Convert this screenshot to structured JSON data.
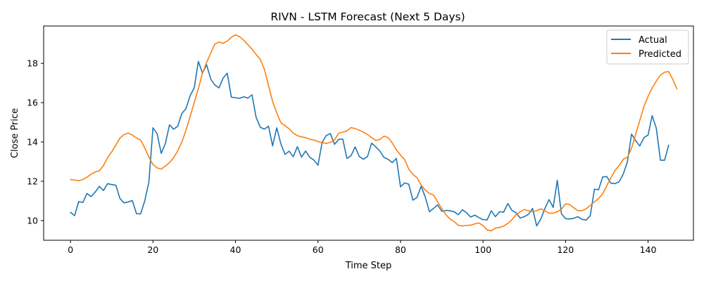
{
  "chart_data": {
    "type": "line",
    "title": "RIVN - LSTM Forecast (Next 5 Days)",
    "xlabel": "Time Step",
    "ylabel": "Close Price",
    "xlim": [
      -6.5,
      151
    ],
    "ylim": [
      9.0,
      19.9
    ],
    "xticks": [
      0,
      20,
      40,
      60,
      80,
      100,
      120,
      140
    ],
    "yticks": [
      10,
      12,
      14,
      16,
      18
    ],
    "legend_position": "top-right",
    "series": [
      {
        "name": "Actual",
        "color": "#1f77b4",
        "values": [
          10.42,
          10.25,
          10.97,
          10.92,
          11.38,
          11.22,
          11.45,
          11.74,
          11.53,
          11.88,
          11.83,
          11.8,
          11.12,
          10.9,
          10.95,
          11.02,
          10.35,
          10.34,
          11.0,
          11.95,
          14.72,
          14.42,
          13.42,
          13.92,
          14.87,
          14.65,
          14.8,
          15.45,
          15.7,
          16.35,
          16.75,
          18.1,
          17.5,
          17.93,
          17.2,
          16.9,
          16.75,
          17.25,
          17.5,
          16.28,
          16.25,
          16.22,
          16.3,
          16.23,
          16.4,
          15.25,
          14.75,
          14.65,
          14.8,
          13.8,
          14.72,
          13.9,
          13.37,
          13.53,
          13.25,
          13.76,
          13.23,
          13.54,
          13.22,
          13.08,
          12.82,
          13.98,
          14.33,
          14.43,
          13.88,
          14.13,
          14.15,
          13.16,
          13.3,
          13.75,
          13.26,
          13.12,
          13.26,
          13.94,
          13.75,
          13.53,
          13.21,
          13.12,
          12.95,
          13.16,
          11.72,
          11.92,
          11.85,
          11.04,
          11.18,
          11.75,
          11.2,
          10.45,
          10.62,
          10.8,
          10.47,
          10.52,
          10.5,
          10.45,
          10.3,
          10.55,
          10.4,
          10.18,
          10.28,
          10.15,
          10.05,
          10.04,
          10.5,
          10.2,
          10.45,
          10.43,
          10.87,
          10.52,
          10.4,
          10.13,
          10.2,
          10.32,
          10.62,
          9.73,
          10.08,
          10.62,
          11.07,
          10.67,
          12.05,
          10.35,
          10.1,
          10.08,
          10.12,
          10.2,
          10.06,
          10.03,
          10.25,
          11.6,
          11.57,
          12.22,
          12.24,
          11.9,
          11.88,
          11.98,
          12.37,
          13.0,
          14.4,
          14.06,
          13.8,
          14.22,
          14.35,
          15.34,
          14.7,
          13.07,
          13.07,
          13.84
        ]
      },
      {
        "name": "Predicted",
        "color": "#ff7f0e",
        "values": [
          12.09,
          12.06,
          12.03,
          12.09,
          12.21,
          12.36,
          12.48,
          12.53,
          12.8,
          13.2,
          13.5,
          13.84,
          14.2,
          14.38,
          14.45,
          14.35,
          14.2,
          14.1,
          13.7,
          13.23,
          12.85,
          12.68,
          12.62,
          12.78,
          12.95,
          13.2,
          13.55,
          14.0,
          14.6,
          15.3,
          16.0,
          16.72,
          17.5,
          18.05,
          18.52,
          18.98,
          19.08,
          19.02,
          19.13,
          19.33,
          19.45,
          19.35,
          19.18,
          18.95,
          18.72,
          18.45,
          18.2,
          17.7,
          16.88,
          16.05,
          15.48,
          14.98,
          14.83,
          14.67,
          14.45,
          14.32,
          14.26,
          14.22,
          14.14,
          14.1,
          14.02,
          13.96,
          13.93,
          13.98,
          14.1,
          14.45,
          14.5,
          14.56,
          14.73,
          14.68,
          14.6,
          14.5,
          14.38,
          14.22,
          14.08,
          14.13,
          14.3,
          14.22,
          13.95,
          13.6,
          13.33,
          13.1,
          12.62,
          12.35,
          12.18,
          11.8,
          11.55,
          11.38,
          11.3,
          10.95,
          10.62,
          10.3,
          10.08,
          9.95,
          9.76,
          9.73,
          9.75,
          9.77,
          9.83,
          9.88,
          9.75,
          9.52,
          9.48,
          9.62,
          9.65,
          9.72,
          9.86,
          10.04,
          10.3,
          10.45,
          10.56,
          10.5,
          10.45,
          10.5,
          10.6,
          10.5,
          10.38,
          10.38,
          10.45,
          10.58,
          10.85,
          10.82,
          10.65,
          10.5,
          10.5,
          10.6,
          10.78,
          10.95,
          11.12,
          11.36,
          11.78,
          12.18,
          12.55,
          12.8,
          13.12,
          13.22,
          13.68,
          14.4,
          15.1,
          15.8,
          16.32,
          16.75,
          17.1,
          17.4,
          17.55,
          17.58,
          17.18,
          16.7
        ]
      }
    ]
  }
}
